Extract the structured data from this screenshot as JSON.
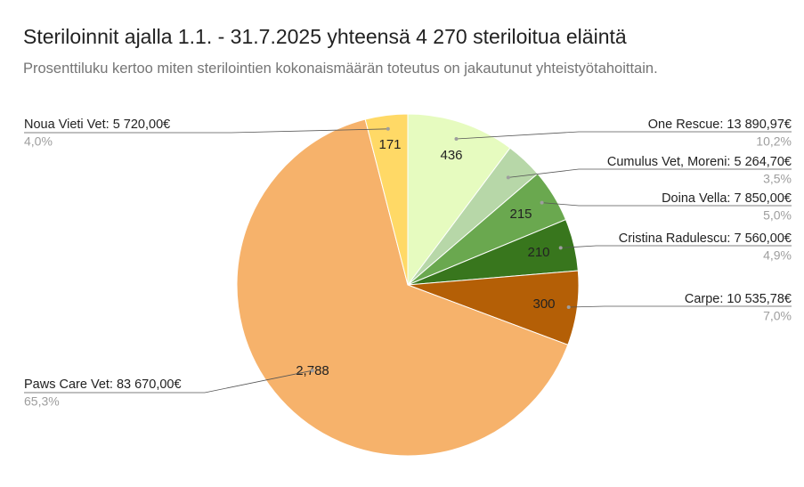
{
  "header": {
    "title": "Steriloinnit ajalla 1.1. - 31.7.2025 yhteensä 4 270 steriloitua eläintä",
    "subtitle": "Prosenttiluku kertoo miten sterilointien kokonaismäärän toteutus on jakautunut yhteistyötahoittain."
  },
  "chart_data": {
    "type": "pie",
    "title": "Steriloinnit ajalla 1.1. - 31.7.2025 yhteensä 4 270 steriloitua eläintä",
    "subtitle": "Prosenttiluku kertoo miten sterilointien kokonaismäärän toteutus on jakautunut yhteistyötahoittain.",
    "start_angle_deg": 0,
    "direction": "clockwise",
    "slices": [
      {
        "label": "One Rescue: 13 890,97€",
        "value": 436,
        "value_label": "436",
        "percent_label": "10,2%",
        "color": "#e6fbbf",
        "side": "right"
      },
      {
        "label": "Cumulus Vet, Moreni: 5 264,70€",
        "value": 150,
        "value_label": "",
        "percent_label": "3,5%",
        "color": "#b7d7a8",
        "side": "right"
      },
      {
        "label": "Doina Vella: 7 850,00€",
        "value": 215,
        "value_label": "215",
        "percent_label": "5,0%",
        "color": "#6aa84f",
        "side": "right"
      },
      {
        "label": "Cristina Radulescu: 7 560,00€",
        "value": 210,
        "value_label": "210",
        "percent_label": "4,9%",
        "color": "#38761d",
        "side": "right"
      },
      {
        "label": "Carpe: 10 535,78€",
        "value": 300,
        "value_label": "300",
        "percent_label": "7,0%",
        "color": "#b45f06",
        "side": "right"
      },
      {
        "label": "Paws Care Vet: 83 670,00€",
        "value": 2788,
        "value_label": "2,788",
        "percent_label": "65,3%",
        "color": "#f6b26b",
        "side": "left"
      },
      {
        "label": "Noua Vieti Vet: 5 720,00€",
        "value": 171,
        "value_label": "171",
        "percent_label": "4,0%",
        "color": "#ffd966",
        "side": "left"
      }
    ]
  }
}
